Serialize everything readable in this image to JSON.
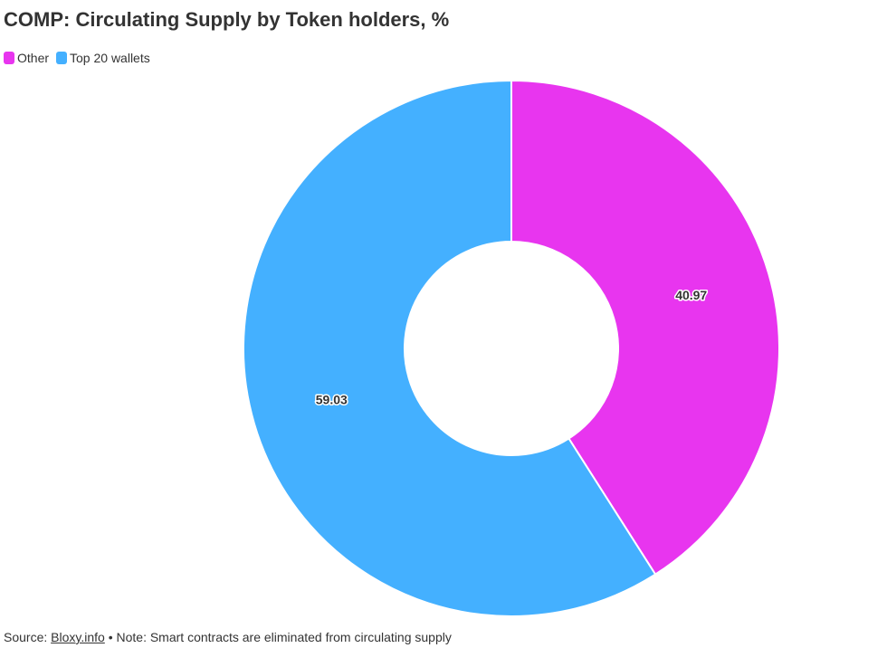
{
  "title": "COMP: Circulating Supply by Token holders, %",
  "legend": [
    {
      "label": "Other",
      "color": "#e835ef"
    },
    {
      "label": "Top 20 wallets",
      "color": "#44b0ff"
    }
  ],
  "footer": {
    "source_prefix": "Source: ",
    "source_link": "Bloxy.info",
    "note": " • Note: Smart contracts are eliminated from circulating supply"
  },
  "chart_data": {
    "type": "pie",
    "title": "COMP: Circulating Supply by Token holders, %",
    "donut": true,
    "start_angle": "12 o'clock",
    "direction": "clockwise",
    "legend_position": "top-left",
    "slices": [
      {
        "name": "Other",
        "value": 40.97,
        "label": "40.97",
        "color": "#e835ef"
      },
      {
        "name": "Top 20 wallets",
        "value": 59.03,
        "label": "59.03",
        "color": "#44b0ff"
      }
    ]
  }
}
